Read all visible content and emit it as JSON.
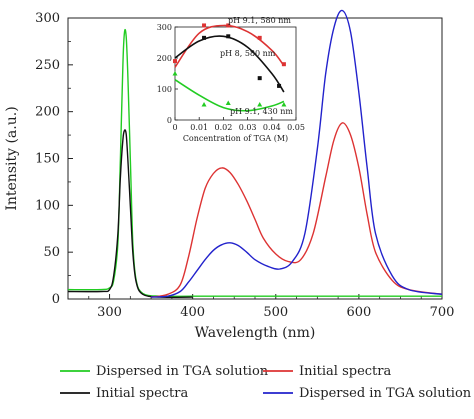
{
  "chart_data": [
    {
      "type": "line",
      "xlabel": "Wavelength (nm)",
      "ylabel": "Intensity (a.u.)",
      "xlim": [
        250,
        700
      ],
      "ylim": [
        0,
        300
      ],
      "xticks": [
        300,
        400,
        500,
        600,
        700
      ],
      "yticks": [
        0,
        50,
        100,
        150,
        200,
        250,
        300
      ],
      "grid": false,
      "series": [
        {
          "name": "Dispersed in TGA solution",
          "color": "#22cc22",
          "x": [
            250,
            290,
            300,
            305,
            310,
            313,
            316,
            318,
            320,
            322,
            325,
            328,
            332,
            340,
            360,
            400,
            500,
            600,
            700
          ],
          "y": [
            10,
            10,
            12,
            20,
            60,
            150,
            250,
            285,
            280,
            240,
            150,
            60,
            20,
            6,
            3,
            3,
            3,
            3,
            3
          ]
        },
        {
          "name": "Initial spectra",
          "color": "#111111",
          "x": [
            250,
            290,
            300,
            305,
            310,
            313,
            316,
            318,
            320,
            322,
            325,
            328,
            332,
            340,
            360,
            400
          ],
          "y": [
            8,
            8,
            10,
            25,
            70,
            130,
            170,
            180,
            176,
            150,
            100,
            50,
            18,
            5,
            2,
            2
          ]
        },
        {
          "name": "Initial spectra",
          "color": "#dd3333",
          "x": [
            350,
            370,
            385,
            395,
            405,
            415,
            425,
            435,
            445,
            455,
            465,
            475,
            485,
            500,
            515,
            530,
            545,
            560,
            570,
            580,
            590,
            600,
            610,
            620,
            640,
            660,
            700
          ],
          "y": [
            2,
            5,
            15,
            45,
            85,
            118,
            134,
            140,
            135,
            122,
            105,
            85,
            65,
            48,
            40,
            42,
            70,
            130,
            170,
            188,
            175,
            140,
            90,
            50,
            20,
            10,
            5
          ]
        },
        {
          "name": "Dispersed in TGA solution",
          "color": "#2222cc",
          "x": [
            350,
            370,
            385,
            395,
            405,
            415,
            425,
            435,
            445,
            455,
            465,
            475,
            490,
            505,
            520,
            535,
            550,
            560,
            570,
            580,
            590,
            600,
            610,
            620,
            640,
            660,
            700
          ],
          "y": [
            2,
            3,
            8,
            18,
            30,
            42,
            52,
            58,
            60,
            57,
            50,
            42,
            35,
            32,
            40,
            70,
            160,
            240,
            290,
            308,
            285,
            220,
            140,
            70,
            25,
            10,
            5
          ]
        }
      ],
      "legend": {
        "placement": "bottom",
        "items": [
          {
            "label": "Dispersed in TGA solution",
            "color": "#22cc22"
          },
          {
            "label": "Initial spectra",
            "color": "#dd3333"
          },
          {
            "label": "Initial spectra",
            "color": "#111111"
          },
          {
            "label": "Dispersed in TGA solution",
            "color": "#2222cc"
          }
        ]
      }
    },
    {
      "type": "scatter",
      "xlabel": "Concentration of TGA (M)",
      "ylabel": "",
      "xlim": [
        0,
        0.05
      ],
      "ylim": [
        0,
        300
      ],
      "xticks": [
        0,
        0.01,
        0.02,
        0.03,
        0.04,
        0.05
      ],
      "yticks": [
        0,
        100,
        200,
        300
      ],
      "grid": false,
      "series": [
        {
          "name": "pH 9.1, 580 nm",
          "color": "#dd3333",
          "points_x": [
            0.0,
            0.012,
            0.022,
            0.035,
            0.045
          ],
          "points_y": [
            190,
            305,
            305,
            265,
            180
          ],
          "fit_x": [
            0.0,
            0.01,
            0.02,
            0.03,
            0.04,
            0.045
          ],
          "fit_y": [
            170,
            280,
            305,
            285,
            225,
            175
          ]
        },
        {
          "name": "pH 8, 580 nm",
          "color": "#111111",
          "points_x": [
            0.012,
            0.022,
            0.035,
            0.043
          ],
          "points_y": [
            265,
            270,
            135,
            110
          ],
          "fit_x": [
            0.0,
            0.01,
            0.02,
            0.03,
            0.04,
            0.045
          ],
          "fit_y": [
            200,
            255,
            270,
            235,
            150,
            90
          ]
        },
        {
          "name": "pH 9.1, 430 nm",
          "color": "#22cc22",
          "points_x": [
            0.0,
            0.012,
            0.022,
            0.035,
            0.045
          ],
          "points_y": [
            150,
            50,
            55,
            50,
            50
          ],
          "fit_x": [
            0.0,
            0.01,
            0.02,
            0.03,
            0.04,
            0.045
          ],
          "fit_y": [
            130,
            80,
            40,
            30,
            45,
            60
          ]
        }
      ],
      "annotations": [
        "pH 9.1, 580 nm",
        "pH 8, 580 nm",
        "pH 9.1, 430 nm"
      ]
    }
  ]
}
